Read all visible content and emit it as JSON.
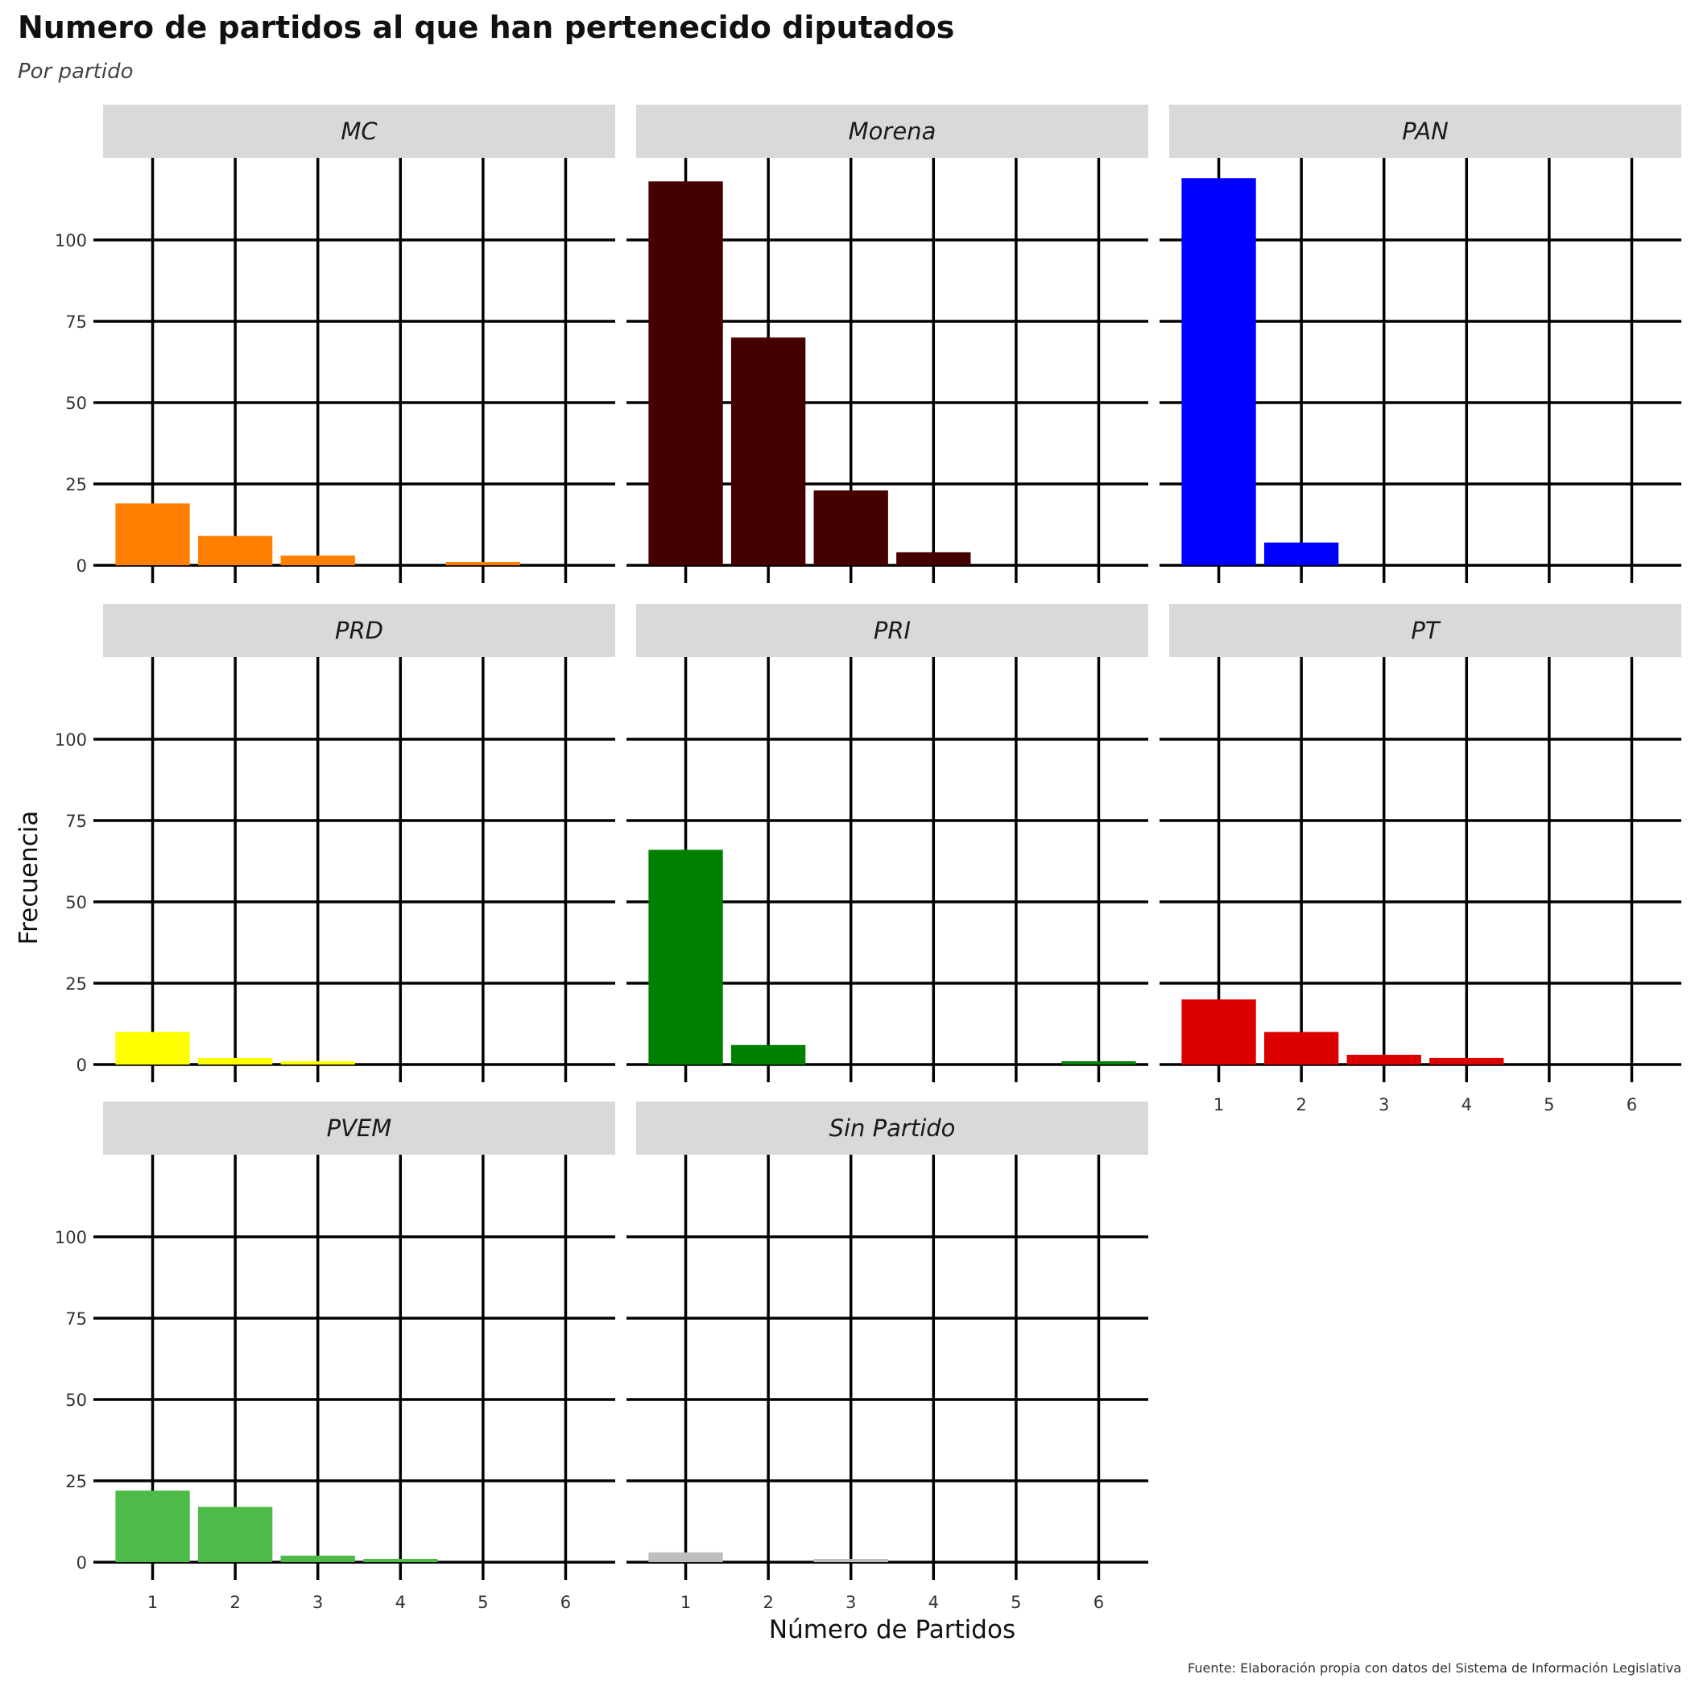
{
  "title": "Numero de partidos al que han pertenecido diputados",
  "subtitle": "Por partido",
  "caption": "Fuente: Elaboración propia con datos del Sistema de Información Legislativa",
  "chart_data": {
    "type": "bar",
    "facet": "wrap",
    "xlabel": "Número de Partidos",
    "ylabel": "Frecuencia",
    "x_categories": [
      "1",
      "2",
      "3",
      "4",
      "5",
      "6"
    ],
    "y_ticks": [
      "0",
      "25",
      "50",
      "75",
      "100"
    ],
    "ylim": [
      0,
      120
    ],
    "grid": true,
    "panels": [
      {
        "name": "MC",
        "color": "#FF7F00",
        "values": [
          19,
          9,
          3,
          0,
          1,
          0
        ]
      },
      {
        "name": "Morena",
        "color": "#450000",
        "values": [
          118,
          70,
          23,
          4,
          0,
          0
        ]
      },
      {
        "name": "PAN",
        "color": "#0000FF",
        "values": [
          119,
          7,
          0,
          0,
          0,
          0
        ]
      },
      {
        "name": "PRD",
        "color": "#FFFF00",
        "values": [
          10,
          2,
          1,
          0,
          0,
          0
        ]
      },
      {
        "name": "PRI",
        "color": "#008000",
        "values": [
          66,
          6,
          0,
          0,
          0,
          1
        ]
      },
      {
        "name": "PT",
        "color": "#DD0000",
        "values": [
          20,
          10,
          3,
          2,
          0,
          0
        ]
      },
      {
        "name": "PVEM",
        "color": "#4CBB47",
        "values": [
          22,
          17,
          2,
          1,
          0,
          0
        ]
      },
      {
        "name": "Sin Partido",
        "color": "#BEBEBE",
        "values": [
          3,
          0,
          1,
          0,
          0,
          0
        ]
      }
    ]
  }
}
